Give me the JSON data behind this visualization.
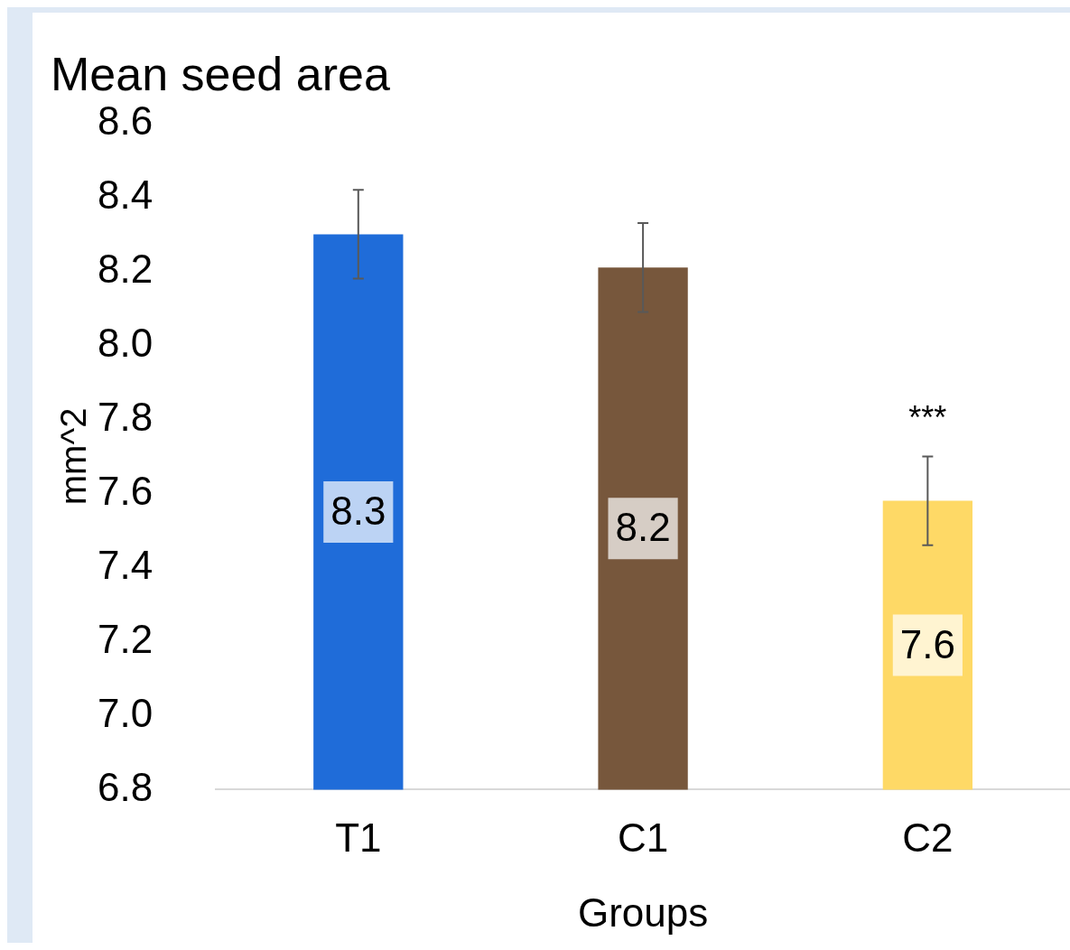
{
  "chart_data": {
    "type": "bar",
    "title": "Mean seed area",
    "xlabel": "Groups",
    "ylabel": "mm^2",
    "categories": [
      "T1",
      "C1",
      "C2"
    ],
    "values": [
      8.3,
      8.21,
      7.58
    ],
    "colors": [
      "#1f6cd9",
      "#77573c",
      "#fed966"
    ],
    "errors": [
      0.12,
      0.12,
      0.12
    ],
    "value_labels": [
      "8.3",
      "8.2",
      "7.6"
    ],
    "ylim": [
      6.8,
      8.6
    ],
    "yticks": [
      {
        "value": 6.8,
        "label": "6.8"
      },
      {
        "value": 7.0,
        "label": "7.0"
      },
      {
        "value": 7.2,
        "label": "7.2"
      },
      {
        "value": 7.4,
        "label": "7.4"
      },
      {
        "value": 7.6,
        "label": "7.6"
      },
      {
        "value": 7.8,
        "label": "7.8"
      },
      {
        "value": 8.0,
        "label": "8.0"
      },
      {
        "value": 8.2,
        "label": "8.2"
      },
      {
        "value": 8.4,
        "label": "8.4"
      },
      {
        "value": 8.6,
        "label": "8.6"
      }
    ],
    "annotations": [
      "***"
    ],
    "grid": false,
    "legend": false
  }
}
